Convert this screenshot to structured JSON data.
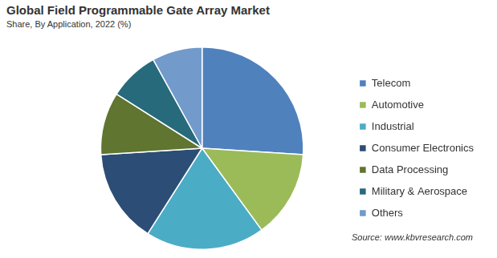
{
  "chart_data": {
    "type": "pie",
    "title": "Global Field Programmable Gate Array Market",
    "subtitle": "Share, By Application, 2022 (%)",
    "source": "Source: www.kbvresearch.com",
    "categories": [
      "Telecom",
      "Automotive",
      "Industrial",
      "Consumer Electronics",
      "Data Processing",
      "Military & Aerospace",
      "Others"
    ],
    "values": [
      26,
      14,
      19,
      15,
      10,
      8,
      8
    ],
    "colors": [
      "#4f81bd",
      "#9bbb59",
      "#4bacc6",
      "#2c4d75",
      "#5f7530",
      "#276a7c",
      "#729aca"
    ],
    "legend": "right",
    "data_labels": false
  }
}
